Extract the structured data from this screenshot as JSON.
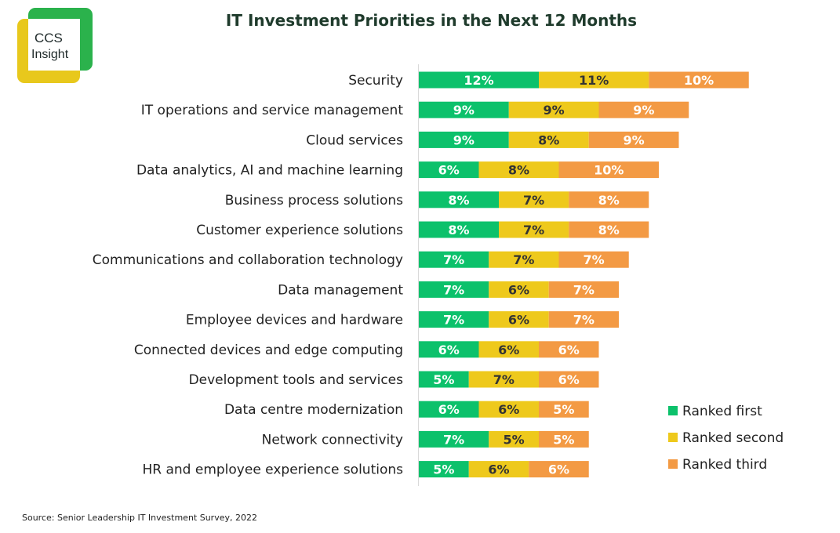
{
  "logo": {
    "line1": "CCS",
    "line2": "Insight",
    "colors": [
      "#2bb24c",
      "#e8c81c"
    ]
  },
  "chart_data": {
    "type": "bar",
    "orientation": "horizontal",
    "stacked": true,
    "title": "IT Investment Priorities in the Next 12 Months",
    "source": "Source: Senior Leadership IT Investment Survey, 2022",
    "legend_position": "bottom-right",
    "grid": false,
    "categories": [
      "Security",
      "IT operations and service management",
      "Cloud services",
      "Data analytics, AI and machine learning",
      "Business process solutions",
      "Customer experience solutions",
      "Communications and collaboration technology",
      "Data management",
      "Employee devices and hardware",
      "Connected devices and edge computing",
      "Development tools and services",
      "Data centre modernization",
      "Network connectivity",
      "HR and employee experience solutions"
    ],
    "series": [
      {
        "name": "Ranked first",
        "color": "#0cc16b",
        "values": [
          12,
          9,
          9,
          6,
          8,
          8,
          7,
          7,
          7,
          6,
          5,
          6,
          7,
          5
        ],
        "labels": [
          "12%",
          "9%",
          "9%",
          "6%",
          "8%",
          "8%",
          "7%",
          "7%",
          "7%",
          "6%",
          "5%",
          "6%",
          "7%",
          "5%"
        ],
        "label_color": "#ffffff"
      },
      {
        "name": "Ranked second",
        "color": "#eec91c",
        "values": [
          11,
          9,
          8,
          8,
          7,
          7,
          7,
          6,
          6,
          6,
          7,
          6,
          5,
          6
        ],
        "labels": [
          "11%",
          "9%",
          "8%",
          "8%",
          "7%",
          "7%",
          "7%",
          "6%",
          "6%",
          "6%",
          "7%",
          "6%",
          "5%",
          "6%"
        ],
        "label_color": "#333333"
      },
      {
        "name": "Ranked third",
        "color": "#f39a44",
        "values": [
          10,
          9,
          9,
          10,
          8,
          8,
          7,
          7,
          7,
          6,
          6,
          5,
          5,
          6
        ],
        "labels": [
          "10%",
          "9%",
          "9%",
          "10%",
          "8%",
          "8%",
          "7%",
          "7%",
          "7%",
          "6%",
          "6%",
          "5%",
          "5%",
          "6%"
        ],
        "label_color": "#ffffff"
      }
    ]
  }
}
